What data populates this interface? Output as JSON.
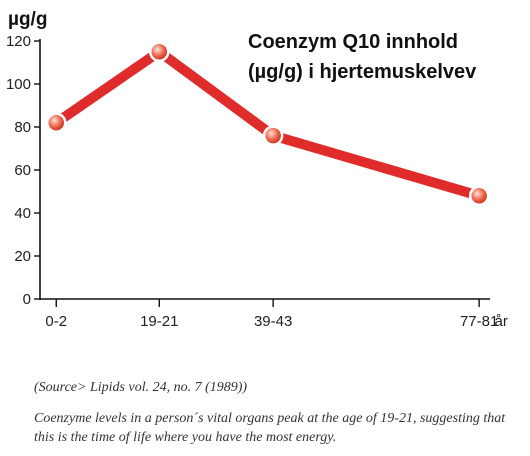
{
  "chart_data": {
    "type": "line",
    "title_lines": [
      "Coenzym Q10 innhold",
      "(µg/g) i hjertemuskelvev"
    ],
    "ylabel": "µg/g",
    "xlabel": "år",
    "categories": [
      "0-2",
      "19-21",
      "39-43",
      "77-81"
    ],
    "values": [
      82,
      115,
      76,
      48
    ],
    "x_positions": [
      1,
      20,
      41,
      79
    ],
    "xlim": [
      -2,
      81
    ],
    "ylim": [
      0,
      120
    ],
    "yticks": [
      0,
      20,
      40,
      60,
      80,
      100,
      120
    ],
    "line_color": "#e02b2b",
    "marker_color": "#ef6a52",
    "grid": false,
    "legend": "none"
  },
  "source_text": "(Source> Lipids vol. 24, no. 7 (1989))",
  "caption_text": "Coenzyme levels in a person´s vital organs peak at the age of 19-21, suggesting that this is the time of life where you have the most energy."
}
